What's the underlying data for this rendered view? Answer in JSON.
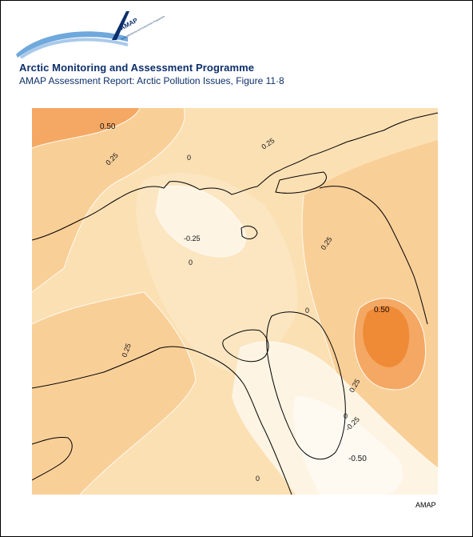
{
  "logo": {
    "wordmark": "AMAP",
    "tagline": "Arctic Monitoring and Assessment Programme"
  },
  "header": {
    "title": "Arctic Monitoring and Assessment Programme",
    "subtitle": "AMAP Assessment Report: Arctic Pollution Issues, Figure 11·8"
  },
  "map": {
    "contour_labels": {
      "l1": "0.50",
      "l2": "0.25",
      "l3": "0.25",
      "l4": "0",
      "l5": "-0.25",
      "l6": "0",
      "l7": "0.25",
      "l8": "0",
      "l9": "0.25",
      "l10": "0.50",
      "l11": "0",
      "l12": "0.25",
      "l13": "-0.25",
      "l14": "-0.50",
      "l15": "0"
    },
    "colors": {
      "level_neg": "#fdf4e3",
      "level_zero": "#fbe6c1",
      "level_pos_low": "#f9cf98",
      "level_pos_high": "#f4a863",
      "level_max": "#ef8a36",
      "coastline": "#000000"
    }
  },
  "footer": {
    "credit": "AMAP"
  }
}
